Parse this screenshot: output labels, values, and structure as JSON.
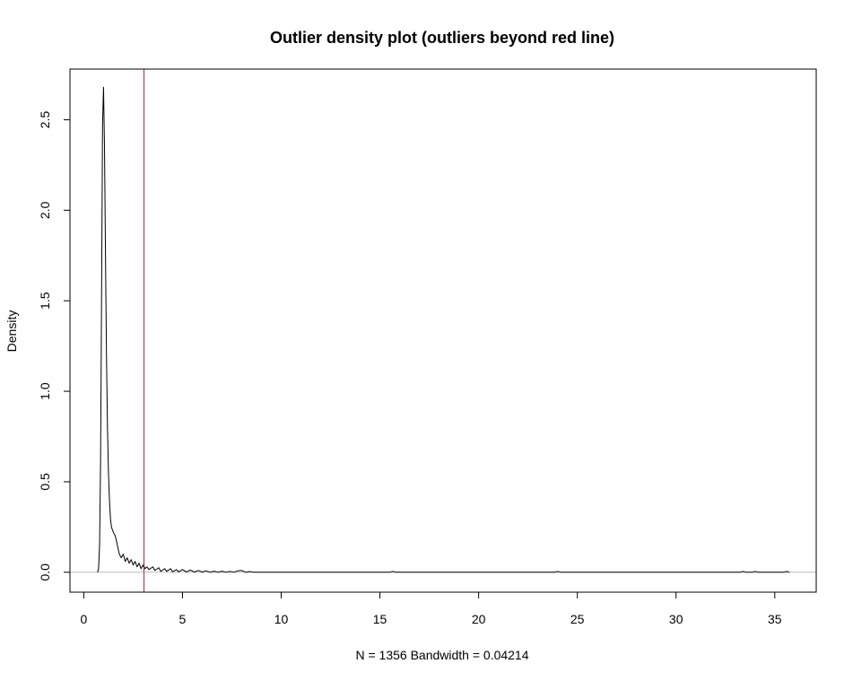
{
  "chart_data": {
    "type": "line",
    "title": "Outlier density plot (outliers beyond red line)",
    "xlabel": "N = 1356   Bandwidth = 0.04214",
    "ylabel": "Density",
    "xlim": [
      -0.7,
      37.1
    ],
    "ylim": [
      -0.11,
      2.78
    ],
    "x_ticks": [
      0,
      5,
      10,
      15,
      20,
      25,
      30,
      35
    ],
    "x_tick_labels": [
      "0",
      "5",
      "10",
      "15",
      "20",
      "25",
      "30",
      "35"
    ],
    "y_ticks": [
      0.0,
      0.5,
      1.0,
      1.5,
      2.0,
      2.5
    ],
    "y_tick_labels": [
      "0.0",
      "0.5",
      "1.0",
      "1.5",
      "2.0",
      "2.5"
    ],
    "grid": false,
    "baseline": {
      "y": 0,
      "color": "#bebebe"
    },
    "threshold_line": {
      "x": 3.05,
      "color": "#b22234"
    },
    "series": [
      {
        "line_color": "#000000",
        "points": [
          [
            0.7,
            0.0
          ],
          [
            0.75,
            0.02
          ],
          [
            0.8,
            0.15
          ],
          [
            0.85,
            0.6
          ],
          [
            0.9,
            1.5
          ],
          [
            0.95,
            2.47
          ],
          [
            1.0,
            2.68
          ],
          [
            1.05,
            2.35
          ],
          [
            1.1,
            1.75
          ],
          [
            1.15,
            1.2
          ],
          [
            1.2,
            0.8
          ],
          [
            1.25,
            0.55
          ],
          [
            1.3,
            0.4
          ],
          [
            1.35,
            0.3
          ],
          [
            1.4,
            0.25
          ],
          [
            1.5,
            0.22
          ],
          [
            1.6,
            0.2
          ],
          [
            1.7,
            0.15
          ],
          [
            1.8,
            0.1
          ],
          [
            1.9,
            0.08
          ],
          [
            2.0,
            0.1
          ],
          [
            2.1,
            0.06
          ],
          [
            2.2,
            0.08
          ],
          [
            2.3,
            0.05
          ],
          [
            2.4,
            0.07
          ],
          [
            2.5,
            0.04
          ],
          [
            2.6,
            0.06
          ],
          [
            2.7,
            0.03
          ],
          [
            2.8,
            0.05
          ],
          [
            2.9,
            0.02
          ],
          [
            3.0,
            0.04
          ],
          [
            3.1,
            0.02
          ],
          [
            3.2,
            0.03
          ],
          [
            3.3,
            0.015
          ],
          [
            3.5,
            0.03
          ],
          [
            3.6,
            0.01
          ],
          [
            3.8,
            0.025
          ],
          [
            3.9,
            0.005
          ],
          [
            4.1,
            0.02
          ],
          [
            4.2,
            0.005
          ],
          [
            4.4,
            0.02
          ],
          [
            4.5,
            0.003
          ],
          [
            4.7,
            0.015
          ],
          [
            4.8,
            0.002
          ],
          [
            5.0,
            0.015
          ],
          [
            5.2,
            0.002
          ],
          [
            5.4,
            0.012
          ],
          [
            5.6,
            0.001
          ],
          [
            5.8,
            0.01
          ],
          [
            6.0,
            0.001
          ],
          [
            6.2,
            0.008
          ],
          [
            6.4,
            0.0
          ],
          [
            6.6,
            0.006
          ],
          [
            6.8,
            0.0
          ],
          [
            7.0,
            0.006
          ],
          [
            7.2,
            0.0
          ],
          [
            7.4,
            0.005
          ],
          [
            7.6,
            0.0
          ],
          [
            7.8,
            0.008
          ],
          [
            8.0,
            0.01
          ],
          [
            8.2,
            0.0
          ],
          [
            8.4,
            0.004
          ],
          [
            8.6,
            0.0
          ],
          [
            15.5,
            0.0
          ],
          [
            15.65,
            0.005
          ],
          [
            15.8,
            0.0
          ],
          [
            23.85,
            0.0
          ],
          [
            24.0,
            0.005
          ],
          [
            24.15,
            0.0
          ],
          [
            33.25,
            0.0
          ],
          [
            33.4,
            0.005
          ],
          [
            33.55,
            0.0
          ],
          [
            33.85,
            0.0
          ],
          [
            34.0,
            0.005
          ],
          [
            34.15,
            0.0
          ],
          [
            35.45,
            0.0
          ],
          [
            35.6,
            0.005
          ],
          [
            35.75,
            0.0
          ]
        ]
      }
    ]
  }
}
